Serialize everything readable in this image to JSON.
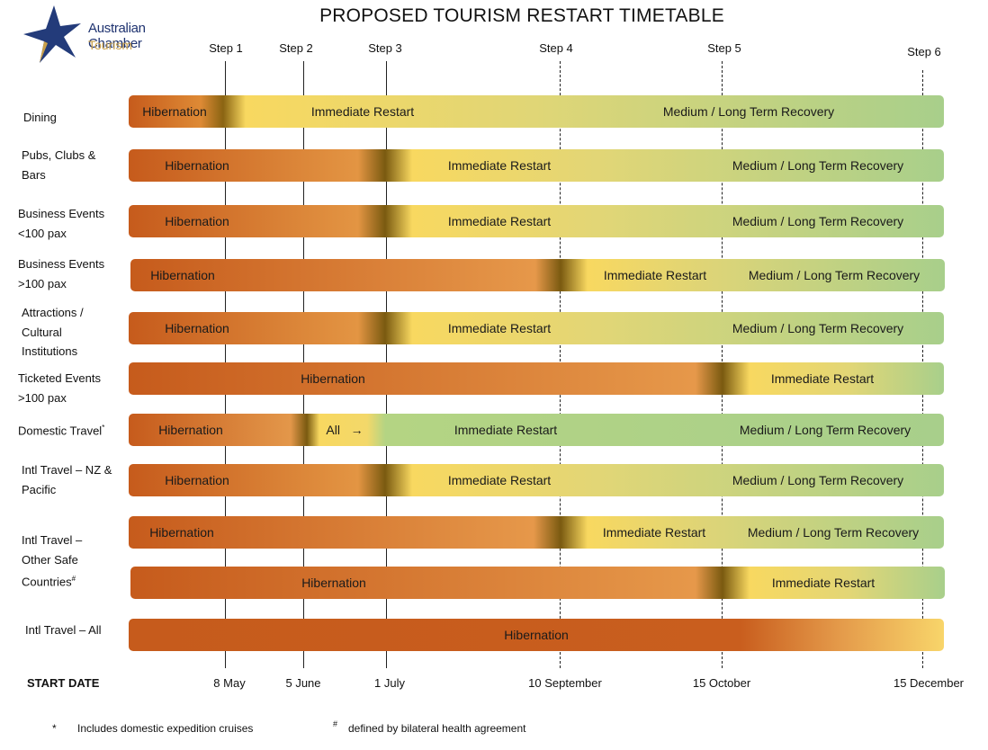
{
  "logo": {
    "line1": "Australian Chamber",
    "line2": "Tourism"
  },
  "title": "PROPOSED TOURISM RESTART TIMETABLE",
  "steps": [
    "Step 1",
    "Step 2",
    "Step 3",
    "Step 4",
    "Step 5",
    "Step 6"
  ],
  "start_date_label": "START DATE",
  "dates": [
    "8 May",
    "5 June",
    "1 July",
    "10 September",
    "15 October",
    "15 December"
  ],
  "phase_labels": {
    "hibernation": "Hibernation",
    "immediate": "Immediate Restart",
    "recovery": "Medium / Long Term Recovery",
    "all": "All"
  },
  "colors": {
    "hibernation": "#c45a1c",
    "transition": "#7a5a10",
    "immediate": "#f7d56a",
    "recovery": "#a7cf8a"
  },
  "rows": [
    {
      "label": "Dining",
      "phases": [
        "hibernation",
        "immediate",
        "recovery"
      ]
    },
    {
      "label": "Pubs, Clubs & Bars",
      "phases": [
        "hibernation",
        "immediate",
        "recovery"
      ]
    },
    {
      "label": "Business Events <100 pax",
      "phases": [
        "hibernation",
        "immediate",
        "recovery"
      ]
    },
    {
      "label": "Business Events >100 pax",
      "phases": [
        "hibernation",
        "immediate",
        "recovery"
      ]
    },
    {
      "label": "Attractions / Cultural Institutions",
      "phases": [
        "hibernation",
        "immediate",
        "recovery"
      ]
    },
    {
      "label": "Ticketed Events >100 pax",
      "phases": [
        "hibernation",
        "immediate"
      ]
    },
    {
      "label": "Domestic Travel",
      "note_mark": "*",
      "phases": [
        "hibernation",
        "all",
        "immediate",
        "recovery"
      ]
    },
    {
      "label": "Intl Travel – NZ & Pacific",
      "phases": [
        "hibernation",
        "immediate",
        "recovery"
      ]
    },
    {
      "label": "Intl Travel – Other Safe Countries",
      "note_mark": "#",
      "phases": [
        "hibernation",
        "immediate",
        "recovery"
      ]
    },
    {
      "label": "",
      "phases": [
        "hibernation",
        "immediate"
      ]
    },
    {
      "label": "Intl Travel – All",
      "phases": [
        "hibernation"
      ]
    }
  ],
  "footnotes": [
    {
      "mark": "*",
      "text": "Includes domestic expedition cruises"
    },
    {
      "mark": "#",
      "text": "defined by bilateral health agreement"
    }
  ]
}
